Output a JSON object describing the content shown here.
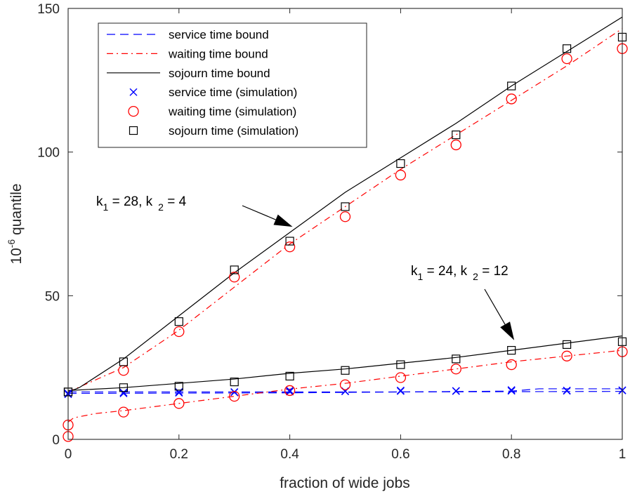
{
  "chart_data": {
    "type": "line",
    "xlabel": "fraction of wide jobs",
    "ylabel": "quantile",
    "ylabel_prefix": "10",
    "ylabel_exponent": "-6",
    "xlim": [
      0,
      1
    ],
    "ylim": [
      0,
      150
    ],
    "xticks": [
      0,
      0.2,
      0.4,
      0.6,
      0.8,
      1
    ],
    "xtick_labels": [
      "0",
      "0.2",
      "0.4",
      "0.6",
      "0.8",
      "1"
    ],
    "yticks": [
      0,
      50,
      100,
      150
    ],
    "ytick_labels": [
      "0",
      "50",
      "100",
      "150"
    ],
    "legend_position": "top-left",
    "series": [
      {
        "group": "k1=28,k2=4",
        "name": "service time bound",
        "kind": "line",
        "style": "dashed",
        "color": "#0000ff",
        "x": [
          0,
          0.2,
          0.4,
          0.6,
          0.8,
          1
        ],
        "y": [
          16.5,
          16.5,
          16.5,
          16.5,
          16.6,
          16.7
        ]
      },
      {
        "group": "k1=28,k2=4",
        "name": "waiting time bound",
        "kind": "line",
        "style": "dashdot",
        "color": "#ff0000",
        "x": [
          0,
          0.1,
          0.2,
          0.3,
          0.4,
          0.5,
          0.6,
          0.7,
          0.8,
          0.9,
          1
        ],
        "y": [
          16.5,
          25,
          38,
          53,
          68,
          81,
          94,
          106,
          118,
          130,
          143
        ]
      },
      {
        "group": "k1=28,k2=4",
        "name": "sojourn time bound",
        "kind": "line",
        "style": "solid",
        "color": "#000000",
        "x": [
          0,
          0.02,
          0.1,
          0.2,
          0.3,
          0.4,
          0.5,
          0.6,
          0.7,
          0.8,
          0.9,
          1
        ],
        "y": [
          16.5,
          18,
          28,
          43,
          58,
          72,
          86,
          98,
          110,
          123,
          135,
          147
        ]
      },
      {
        "group": "k1=28,k2=4",
        "name": "service time (simulation)",
        "kind": "marker",
        "marker": "x",
        "color": "#0000ff",
        "x": [
          0,
          0.1,
          0.2,
          0.3,
          0.4,
          0.5,
          0.6,
          0.7,
          0.8,
          0.9,
          1
        ],
        "y": [
          15.7,
          16.0,
          16.2,
          16.4,
          16.6,
          16.7,
          16.8,
          16.8,
          16.9,
          16.9,
          17.0
        ]
      },
      {
        "group": "k1=28,k2=4",
        "name": "waiting time (simulation)",
        "kind": "marker",
        "marker": "circle",
        "color": "#ff0000",
        "x": [
          0,
          0.1,
          0.2,
          0.3,
          0.4,
          0.5,
          0.6,
          0.7,
          0.8,
          0.9,
          1
        ],
        "y": [
          1,
          24,
          37.5,
          56.5,
          67,
          77.5,
          92,
          102.5,
          118.5,
          132.5,
          136
        ]
      },
      {
        "group": "k1=28,k2=4",
        "name": "sojourn time (simulation)",
        "kind": "marker",
        "marker": "square",
        "color": "#000000",
        "x": [
          0,
          0.1,
          0.2,
          0.3,
          0.4,
          0.5,
          0.6,
          0.7,
          0.8,
          0.9,
          1
        ],
        "y": [
          16.5,
          27,
          41,
          59,
          69,
          81,
          96,
          106,
          123,
          136,
          140
        ]
      },
      {
        "group": "k1=24,k2=12",
        "name": "service time bound",
        "kind": "line",
        "style": "dashed",
        "color": "#0000ff",
        "x": [
          0,
          0.2,
          0.4,
          0.6,
          0.8,
          0.85,
          1
        ],
        "y": [
          16,
          16.1,
          16.2,
          16.5,
          16.8,
          17.6,
          17.6
        ]
      },
      {
        "group": "k1=24,k2=12",
        "name": "waiting time bound",
        "kind": "line",
        "style": "dashdot",
        "color": "#ff0000",
        "x": [
          0,
          0.01,
          0.05,
          0.1,
          0.2,
          0.3,
          0.4,
          0.5,
          0.6,
          0.7,
          0.8,
          0.9,
          1
        ],
        "y": [
          6,
          7.5,
          9,
          10,
          12.5,
          15,
          17.5,
          19.5,
          22,
          24.5,
          27,
          29,
          31
        ]
      },
      {
        "group": "k1=24,k2=12",
        "name": "sojourn time bound",
        "kind": "line",
        "style": "solid",
        "color": "#000000",
        "x": [
          0,
          0.1,
          0.2,
          0.3,
          0.4,
          0.5,
          0.6,
          0.7,
          0.8,
          0.9,
          1
        ],
        "y": [
          17,
          18,
          19.5,
          21,
          23,
          24.5,
          26.5,
          28.5,
          31,
          33.5,
          36
        ]
      },
      {
        "group": "k1=24,k2=12",
        "name": "service time (simulation)",
        "kind": "marker",
        "marker": "x",
        "color": "#0000ff",
        "x": [
          0,
          0.1,
          0.2,
          0.3,
          0.4,
          0.5,
          0.6,
          0.7,
          0.8,
          0.9,
          1
        ],
        "y": [
          16,
          16.3,
          16.5,
          16.5,
          17,
          16.8,
          17,
          16.9,
          17.2,
          17.0,
          17.1
        ]
      },
      {
        "group": "k1=24,k2=12",
        "name": "waiting time (simulation)",
        "kind": "marker",
        "marker": "circle",
        "color": "#ff0000",
        "x": [
          0,
          0.1,
          0.2,
          0.3,
          0.4,
          0.5,
          0.6,
          0.7,
          0.8,
          0.9,
          1
        ],
        "y": [
          5,
          9.5,
          12.5,
          15,
          17,
          19,
          21.5,
          24.5,
          26,
          29,
          30.5
        ]
      },
      {
        "group": "k1=24,k2=12",
        "name": "sojourn time (simulation)",
        "kind": "marker",
        "marker": "square",
        "color": "#000000",
        "x": [
          0,
          0.1,
          0.2,
          0.3,
          0.4,
          0.5,
          0.6,
          0.7,
          0.8,
          0.9,
          1
        ],
        "y": [
          16.5,
          18,
          18.5,
          20,
          22,
          24,
          26,
          28,
          31,
          33,
          34
        ]
      }
    ],
    "legend": [
      {
        "label": "service time bound",
        "kind": "line",
        "style": "dashed",
        "color": "#0000ff"
      },
      {
        "label": "waiting time bound",
        "kind": "line",
        "style": "dashdot",
        "color": "#ff0000"
      },
      {
        "label": "sojourn time bound",
        "kind": "line",
        "style": "solid",
        "color": "#000000"
      },
      {
        "label": "service time (simulation)",
        "kind": "marker",
        "marker": "x",
        "color": "#0000ff"
      },
      {
        "label": "waiting time (simulation)",
        "kind": "marker",
        "marker": "circle",
        "color": "#ff0000"
      },
      {
        "label": "sojourn time (simulation)",
        "kind": "marker",
        "marker": "square",
        "color": "#000000"
      }
    ],
    "annotations": [
      {
        "k1_text": "k",
        "k1_sub": "1",
        "k1_value": " = 28, k",
        "k2_sub": "2",
        "k2_value": " = 4",
        "arrow_tip_data": [
          0.405,
          74
        ]
      },
      {
        "k1_text": "k",
        "k1_sub": "1",
        "k1_value": " = 24, k",
        "k2_sub": "2",
        "k2_value": " = 12",
        "arrow_tip_data": [
          0.805,
          34.5
        ]
      }
    ]
  }
}
